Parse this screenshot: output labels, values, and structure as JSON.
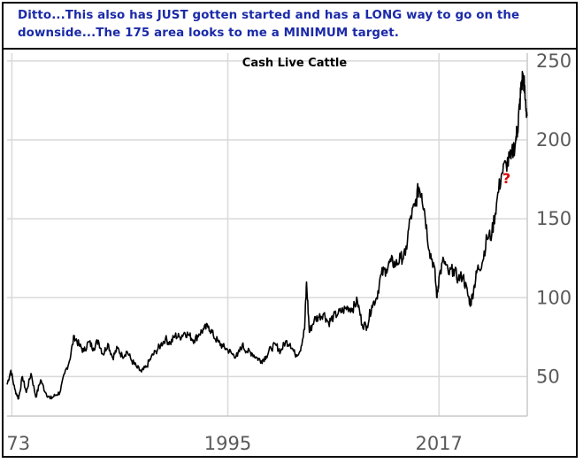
{
  "annotation": {
    "text": "Ditto...This also has JUST gotten started and has a LONG way to go on the downside...The 175 area looks to me a MINIMUM target."
  },
  "chart_data": {
    "type": "line",
    "title": "Cash Live Cattle",
    "xlabel": "",
    "ylabel": "",
    "x_ticks": [
      "73",
      "1995",
      "2017"
    ],
    "y_ticks": [
      50,
      100,
      150,
      200,
      250
    ],
    "xlim": [
      1972,
      2026.2
    ],
    "ylim": [
      25,
      255
    ],
    "grid": true,
    "y_axis_position": "right",
    "series_color": "#000000",
    "marker_text": "?",
    "marker_point": {
      "x": 2025.6,
      "y": 176
    },
    "anchors": [
      [
        1972.0,
        45
      ],
      [
        1972.4,
        54
      ],
      [
        1972.8,
        42
      ],
      [
        1973.2,
        36
      ],
      [
        1973.6,
        50
      ],
      [
        1974.0,
        40
      ],
      [
        1974.5,
        52
      ],
      [
        1975.0,
        37
      ],
      [
        1975.5,
        48
      ],
      [
        1976.0,
        40
      ],
      [
        1976.5,
        36
      ],
      [
        1977.0,
        38
      ],
      [
        1977.5,
        40
      ],
      [
        1978.0,
        52
      ],
      [
        1978.5,
        60
      ],
      [
        1979.0,
        76
      ],
      [
        1979.5,
        70
      ],
      [
        1980.0,
        66
      ],
      [
        1980.5,
        72
      ],
      [
        1981.0,
        68
      ],
      [
        1981.5,
        73
      ],
      [
        1982.0,
        64
      ],
      [
        1982.5,
        71
      ],
      [
        1983.0,
        62
      ],
      [
        1983.5,
        68
      ],
      [
        1984.0,
        63
      ],
      [
        1984.5,
        66
      ],
      [
        1985.0,
        60
      ],
      [
        1985.5,
        56
      ],
      [
        1986.0,
        53
      ],
      [
        1986.5,
        56
      ],
      [
        1987.0,
        62
      ],
      [
        1987.5,
        66
      ],
      [
        1988.0,
        70
      ],
      [
        1988.5,
        74
      ],
      [
        1989.0,
        71
      ],
      [
        1989.5,
        76
      ],
      [
        1990.0,
        75
      ],
      [
        1990.5,
        78
      ],
      [
        1991.0,
        76
      ],
      [
        1991.5,
        73
      ],
      [
        1992.0,
        77
      ],
      [
        1992.5,
        80
      ],
      [
        1993.0,
        82
      ],
      [
        1993.5,
        76
      ],
      [
        1994.0,
        72
      ],
      [
        1994.5,
        69
      ],
      [
        1995.0,
        67
      ],
      [
        1995.5,
        64
      ],
      [
        1996.0,
        63
      ],
      [
        1996.5,
        70
      ],
      [
        1997.0,
        66
      ],
      [
        1997.5,
        65
      ],
      [
        1998.0,
        62
      ],
      [
        1998.5,
        60
      ],
      [
        1999.0,
        63
      ],
      [
        1999.5,
        68
      ],
      [
        2000.0,
        70
      ],
      [
        2000.5,
        66
      ],
      [
        2001.0,
        72
      ],
      [
        2001.5,
        71
      ],
      [
        2002.0,
        64
      ],
      [
        2002.5,
        66
      ],
      [
        2003.0,
        80
      ],
      [
        2003.2,
        110
      ],
      [
        2003.5,
        78
      ],
      [
        2004.0,
        86
      ],
      [
        2004.5,
        88
      ],
      [
        2005.0,
        90
      ],
      [
        2005.5,
        84
      ],
      [
        2006.0,
        88
      ],
      [
        2006.5,
        90
      ],
      [
        2007.0,
        92
      ],
      [
        2007.5,
        94
      ],
      [
        2008.0,
        93
      ],
      [
        2008.5,
        98
      ],
      [
        2009.0,
        83
      ],
      [
        2009.5,
        82
      ],
      [
        2010.0,
        95
      ],
      [
        2010.5,
        100
      ],
      [
        2011.0,
        115
      ],
      [
        2011.5,
        118
      ],
      [
        2012.0,
        123
      ],
      [
        2012.5,
        121
      ],
      [
        2013.0,
        125
      ],
      [
        2013.5,
        127
      ],
      [
        2014.0,
        150
      ],
      [
        2014.5,
        158
      ],
      [
        2014.9,
        170
      ],
      [
        2015.2,
        166
      ],
      [
        2015.5,
        155
      ],
      [
        2016.0,
        130
      ],
      [
        2016.5,
        120
      ],
      [
        2016.8,
        100
      ],
      [
        2017.0,
        113
      ],
      [
        2017.5,
        124
      ],
      [
        2018.0,
        115
      ],
      [
        2018.5,
        118
      ],
      [
        2019.0,
        112
      ],
      [
        2019.5,
        114
      ],
      [
        2020.0,
        102
      ],
      [
        2020.3,
        96
      ],
      [
        2020.7,
        108
      ],
      [
        2021.0,
        118
      ],
      [
        2021.5,
        122
      ],
      [
        2022.0,
        138
      ],
      [
        2022.5,
        140
      ],
      [
        2023.0,
        160
      ],
      [
        2023.5,
        178
      ],
      [
        2024.0,
        185
      ],
      [
        2024.5,
        188
      ],
      [
        2025.0,
        200
      ],
      [
        2025.2,
        208
      ],
      [
        2025.4,
        221
      ],
      [
        2025.6,
        236
      ],
      [
        2025.8,
        240
      ],
      [
        2026.0,
        225
      ],
      [
        2026.2,
        215
      ]
    ]
  }
}
